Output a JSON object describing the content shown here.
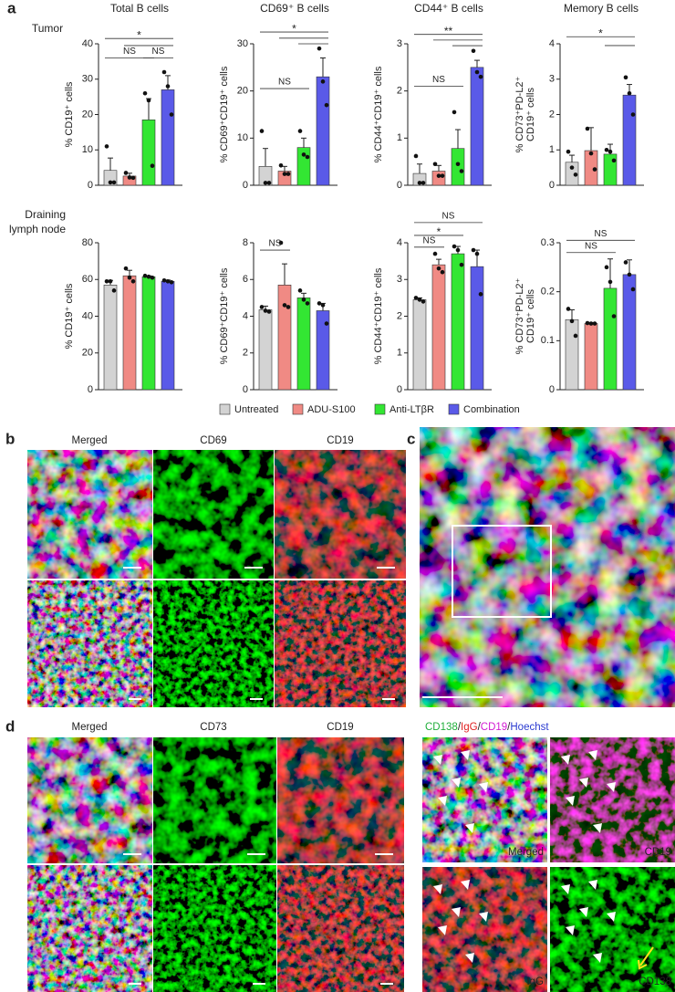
{
  "panel_labels": [
    "a",
    "b",
    "c",
    "d"
  ],
  "row_labels": {
    "tumor": "Tumor",
    "node": [
      "Draining",
      "lymph node"
    ]
  },
  "legend": {
    "series": [
      {
        "name": "Untreated",
        "color": "#d3d3d3"
      },
      {
        "name": "ADU-S100",
        "color": "#f08a84"
      },
      {
        "name": "Anti-LTβR",
        "color": "#33e633"
      },
      {
        "name": "Combination",
        "color": "#5a5ae8"
      }
    ]
  },
  "chart_data": [
    {
      "type": "bar",
      "title": "Total B cells",
      "ylabel": [
        "% CD19⁺ cells"
      ],
      "values": [
        4.2,
        2.6,
        18.5,
        27
      ],
      "errors": [
        3.5,
        0.8,
        6,
        4
      ],
      "points": [
        [
          11,
          0.8,
          0.8
        ],
        [
          3.5,
          2.2,
          2.1
        ],
        [
          26,
          24,
          5.5
        ],
        [
          32,
          28,
          20
        ]
      ],
      "ylim": [
        0,
        40
      ],
      "yticks": [
        0,
        10,
        20,
        30,
        40
      ],
      "annotations": [
        {
          "label": "*",
          "from": 0,
          "to": 3,
          "y": 41.5
        },
        {
          "label": "NS",
          "from": 0,
          "to": 2,
          "y": 36
        },
        {
          "label": "NS",
          "from": 2,
          "to": 3,
          "y": 36
        }
      ],
      "lines": [
        {
          "from": 1,
          "to": 3,
          "y": 39.5
        }
      ]
    },
    {
      "type": "bar",
      "title": "CD69⁺ B cells",
      "ylabel": [
        "% CD69⁺CD19⁺ cells"
      ],
      "values": [
        4,
        3,
        8,
        23
      ],
      "errors": [
        3.8,
        1,
        2,
        4
      ],
      "points": [
        [
          11.5,
          0.5,
          0.5
        ],
        [
          4.2,
          2.4,
          2.4
        ],
        [
          11.5,
          6.5,
          6
        ],
        [
          29,
          22,
          17
        ]
      ],
      "ylim": [
        0,
        30
      ],
      "yticks": [
        0,
        10,
        20,
        30
      ],
      "annotations": [
        {
          "label": "*",
          "from": 0,
          "to": 3,
          "y": 32.5
        },
        {
          "label": "NS",
          "from": 0,
          "to": 2,
          "y": 20.5
        }
      ],
      "lines": [
        {
          "from": 1,
          "to": 3,
          "y": 31.2
        },
        {
          "from": 2,
          "to": 3,
          "y": 30
        }
      ]
    },
    {
      "type": "bar",
      "title": "CD44⁺ B cells",
      "ylabel": [
        "% CD44⁺CD19⁺ cells"
      ],
      "values": [
        0.25,
        0.3,
        0.78,
        2.5
      ],
      "errors": [
        0.2,
        0.12,
        0.4,
        0.15
      ],
      "points": [
        [
          0.62,
          0.05,
          0.05
        ],
        [
          0.45,
          0.2,
          0.2
        ],
        [
          1.55,
          0.45,
          0.3
        ],
        [
          2.85,
          2.4,
          2.3
        ]
      ],
      "ylim": [
        0,
        3
      ],
      "yticks": [
        0,
        1,
        2,
        3
      ],
      "annotations": [
        {
          "label": "**",
          "from": 0,
          "to": 3,
          "y": 3.2
        },
        {
          "label": "NS",
          "from": 0,
          "to": 2,
          "y": 2.1
        }
      ],
      "lines": [
        {
          "from": 1,
          "to": 3,
          "y": 3.08
        },
        {
          "from": 2,
          "to": 3,
          "y": 2.96
        }
      ]
    },
    {
      "type": "bar",
      "title": "Memory B cells",
      "ylabel": [
        "% CD73⁺PD-L2⁺",
        "CD19⁺ cells"
      ],
      "values": [
        0.65,
        0.98,
        0.88,
        2.55
      ],
      "errors": [
        0.2,
        0.65,
        0.28,
        0.3
      ],
      "points": [
        [
          0.95,
          0.5,
          0.3
        ],
        [
          1.6,
          0.9,
          0.45
        ],
        [
          1.0,
          0.95,
          0.7
        ],
        [
          3.05,
          2.6,
          2.0
        ]
      ],
      "ylim": [
        0,
        4
      ],
      "yticks": [
        0,
        1,
        2,
        3,
        4
      ],
      "annotations": [
        {
          "label": "*",
          "from": 0,
          "to": 3,
          "y": 4.2
        }
      ],
      "lines": [
        {
          "from": 2,
          "to": 3,
          "y": 3.95
        }
      ]
    },
    {
      "type": "bar",
      "ylabel": [
        "% CD19⁺ cells"
      ],
      "values": [
        57,
        62,
        61.5,
        59
      ],
      "errors": [
        2.5,
        3,
        0.5,
        0.7
      ],
      "points": [
        [
          59,
          59,
          54
        ],
        [
          66,
          61,
          59
        ],
        [
          62,
          61.5,
          61
        ],
        [
          59.5,
          59,
          58.5
        ]
      ],
      "ylim": [
        0,
        80
      ],
      "yticks": [
        0,
        20,
        40,
        60,
        80
      ],
      "annotations": [],
      "lines": []
    },
    {
      "type": "bar",
      "ylabel": [
        "% CD69⁺CD19⁺ cells"
      ],
      "values": [
        4.35,
        5.7,
        5.0,
        4.3
      ],
      "errors": [
        0.2,
        1.15,
        0.25,
        0.4
      ],
      "points": [
        [
          4.5,
          4.3,
          4.25
        ],
        [
          8,
          4.6,
          4.5
        ],
        [
          5.4,
          4.9,
          4.7
        ],
        [
          4.7,
          4.6,
          3.6
        ]
      ],
      "ylim": [
        0,
        8
      ],
      "yticks": [
        0,
        2,
        4,
        6,
        8
      ],
      "annotations": [
        {
          "label": "NS",
          "from": 0,
          "to": 1,
          "y": 7.6
        }
      ],
      "lines": []
    },
    {
      "type": "bar",
      "ylabel": [
        "% CD44⁺CD19⁺ cells"
      ],
      "values": [
        2.45,
        3.4,
        3.7,
        3.35
      ],
      "errors": [
        0.05,
        0.15,
        0.2,
        0.45
      ],
      "points": [
        [
          2.5,
          2.45,
          2.4
        ],
        [
          3.7,
          3.3,
          3.2
        ],
        [
          3.9,
          3.8,
          3.4
        ],
        [
          3.8,
          3.7,
          2.6
        ]
      ],
      "ylim": [
        0,
        4
      ],
      "yticks": [
        0,
        1,
        2,
        3,
        4
      ],
      "annotations": [
        {
          "label": "NS",
          "from": 0,
          "to": 3,
          "y": 4.55
        },
        {
          "label": "*",
          "from": 0,
          "to": 2,
          "y": 4.2
        },
        {
          "label": "NS",
          "from": 0,
          "to": 1,
          "y": 3.88
        }
      ],
      "lines": []
    },
    {
      "type": "bar",
      "ylabel": [
        "% CD73⁺PD-L2⁺",
        "CD19⁺ cells"
      ],
      "values": [
        0.143,
        0.135,
        0.207,
        0.235
      ],
      "errors": [
        0.02,
        0.002,
        0.06,
        0.03
      ],
      "points": [
        [
          0.165,
          0.14,
          0.11
        ],
        [
          0.136,
          0.135,
          0.135
        ],
        [
          0.25,
          0.22,
          0.15
        ],
        [
          0.26,
          0.235,
          0.205
        ]
      ],
      "ylim": [
        0,
        0.3
      ],
      "yticks": [
        0,
        0.1,
        0.2,
        0.3
      ],
      "annotations": [
        {
          "label": "NS",
          "from": 0,
          "to": 3,
          "y": 0.305
        },
        {
          "label": "NS",
          "from": 0,
          "to": 2,
          "y": 0.28
        }
      ],
      "lines": []
    }
  ],
  "panel_b": {
    "labels": [
      "Merged",
      "CD69",
      "CD19"
    ]
  },
  "panel_d": {
    "labels": [
      "Merged",
      "CD73",
      "CD19"
    ],
    "right_header": [
      {
        "text": "CD138",
        "color": "#1fae3a"
      },
      {
        "text": "/",
        "color": "#222222"
      },
      {
        "text": "IgG",
        "color": "#e02020"
      },
      {
        "text": "/",
        "color": "#222222"
      },
      {
        "text": "CD19",
        "color": "#d21ad2"
      },
      {
        "text": "/",
        "color": "#222222"
      },
      {
        "text": "Hoechst",
        "color": "#2a3ad0"
      }
    ],
    "right_labels": [
      "Merged",
      "CD19",
      "IgG",
      "CD138"
    ]
  }
}
